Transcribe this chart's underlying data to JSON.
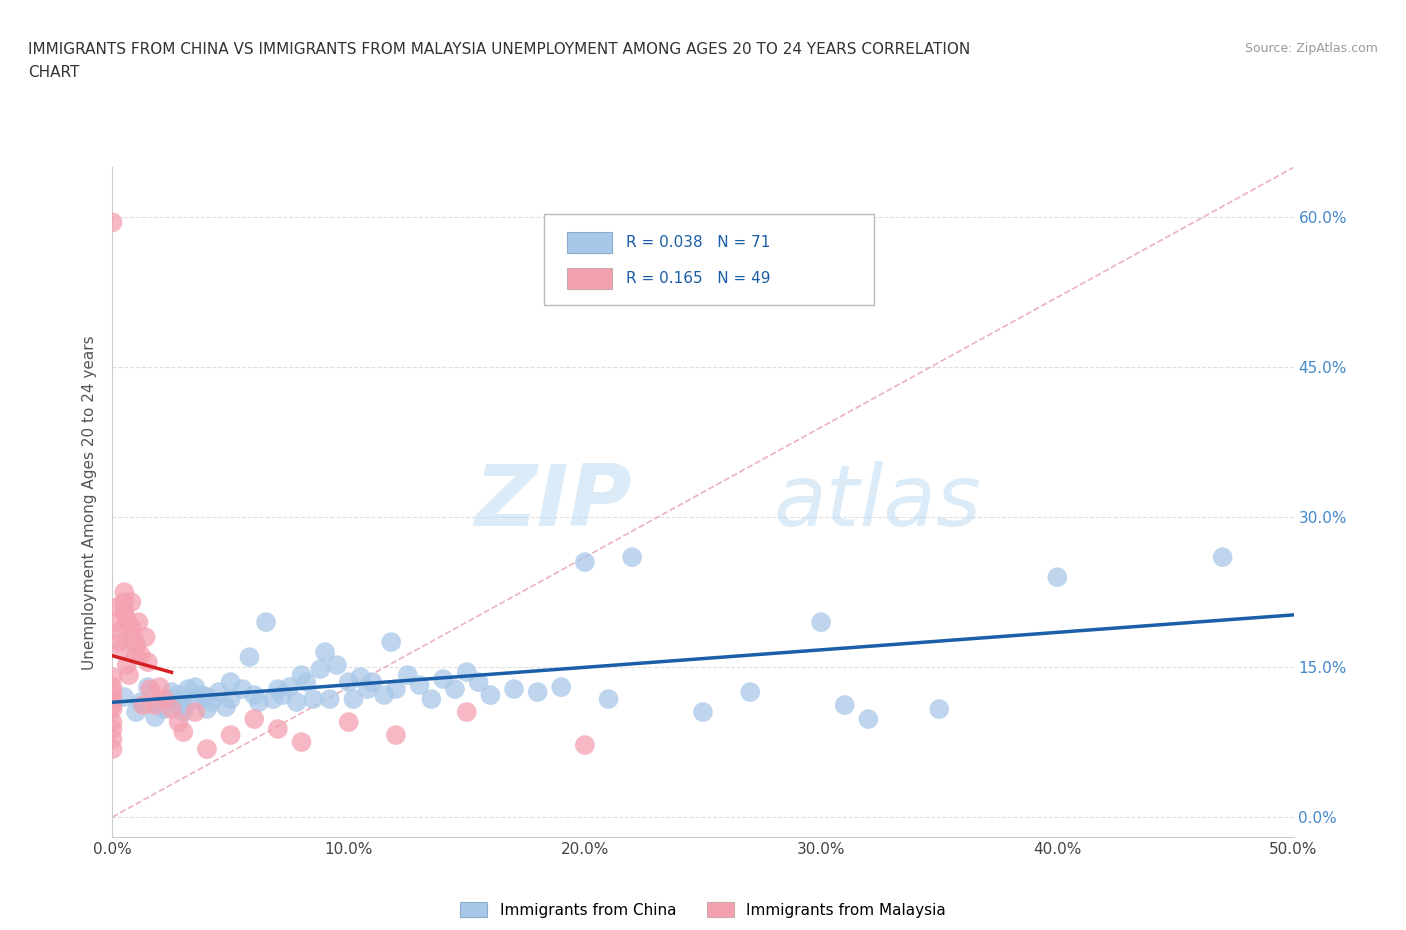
{
  "title_line1": "IMMIGRANTS FROM CHINA VS IMMIGRANTS FROM MALAYSIA UNEMPLOYMENT AMONG AGES 20 TO 24 YEARS CORRELATION",
  "title_line2": "CHART",
  "source_text": "Source: ZipAtlas.com",
  "ylabel_label": "Unemployment Among Ages 20 to 24 years",
  "xlim": [
    0.0,
    0.5
  ],
  "ylim": [
    -0.02,
    0.65
  ],
  "yticks": [
    0.0,
    0.15,
    0.3,
    0.45,
    0.6
  ],
  "ytick_labels": [
    "0.0%",
    "15.0%",
    "30.0%",
    "45.0%",
    "60.0%"
  ],
  "xticks": [
    0.0,
    0.1,
    0.2,
    0.3,
    0.4,
    0.5
  ],
  "xtick_labels": [
    "0.0%",
    "10.0%",
    "20.0%",
    "30.0%",
    "40.0%",
    "50.0%"
  ],
  "legend_r_china": "R = 0.038",
  "legend_n_china": "N = 71",
  "legend_r_malaysia": "R = 0.165",
  "legend_n_malaysia": "N = 49",
  "china_color": "#a8c8e8",
  "malaysia_color": "#f4a0b0",
  "china_line_color": "#1a5fa8",
  "malaysia_line_color": "#d42020",
  "diag_color": "#e8a0a8",
  "watermark_zip": "ZIP",
  "watermark_atlas": "atlas",
  "background_color": "#ffffff",
  "grid_color": "#e0e0e0",
  "yaxis_color": "#4488cc",
  "china_x": [
    0.005,
    0.01,
    0.012,
    0.015,
    0.018,
    0.02,
    0.022,
    0.025,
    0.025,
    0.028,
    0.03,
    0.03,
    0.03,
    0.032,
    0.035,
    0.035,
    0.038,
    0.04,
    0.04,
    0.042,
    0.045,
    0.048,
    0.05,
    0.05,
    0.055,
    0.058,
    0.06,
    0.062,
    0.065,
    0.068,
    0.07,
    0.072,
    0.075,
    0.078,
    0.08,
    0.082,
    0.085,
    0.088,
    0.09,
    0.092,
    0.095,
    0.1,
    0.102,
    0.105,
    0.108,
    0.11,
    0.115,
    0.118,
    0.12,
    0.125,
    0.13,
    0.135,
    0.14,
    0.145,
    0.15,
    0.155,
    0.16,
    0.17,
    0.18,
    0.19,
    0.2,
    0.21,
    0.22,
    0.25,
    0.27,
    0.3,
    0.31,
    0.32,
    0.35,
    0.4,
    0.47
  ],
  "china_y": [
    0.12,
    0.105,
    0.115,
    0.13,
    0.1,
    0.112,
    0.108,
    0.125,
    0.118,
    0.122,
    0.11,
    0.105,
    0.115,
    0.128,
    0.13,
    0.118,
    0.122,
    0.108,
    0.12,
    0.115,
    0.125,
    0.11,
    0.135,
    0.118,
    0.128,
    0.16,
    0.122,
    0.115,
    0.195,
    0.118,
    0.128,
    0.122,
    0.13,
    0.115,
    0.142,
    0.135,
    0.118,
    0.148,
    0.165,
    0.118,
    0.152,
    0.135,
    0.118,
    0.14,
    0.128,
    0.135,
    0.122,
    0.175,
    0.128,
    0.142,
    0.132,
    0.118,
    0.138,
    0.128,
    0.145,
    0.135,
    0.122,
    0.128,
    0.125,
    0.13,
    0.255,
    0.118,
    0.26,
    0.105,
    0.125,
    0.195,
    0.112,
    0.098,
    0.108,
    0.24,
    0.26
  ],
  "malaysia_x": [
    0.0,
    0.0,
    0.0,
    0.0,
    0.0,
    0.0,
    0.0,
    0.0,
    0.0,
    0.0,
    0.0,
    0.002,
    0.002,
    0.003,
    0.003,
    0.004,
    0.005,
    0.005,
    0.005,
    0.006,
    0.006,
    0.007,
    0.008,
    0.008,
    0.009,
    0.01,
    0.01,
    0.011,
    0.012,
    0.013,
    0.014,
    0.015,
    0.016,
    0.018,
    0.02,
    0.022,
    0.025,
    0.028,
    0.03,
    0.035,
    0.04,
    0.05,
    0.06,
    0.07,
    0.08,
    0.1,
    0.12,
    0.15,
    0.2
  ],
  "malaysia_y": [
    0.595,
    0.125,
    0.118,
    0.108,
    0.112,
    0.13,
    0.095,
    0.088,
    0.14,
    0.078,
    0.068,
    0.21,
    0.195,
    0.185,
    0.175,
    0.168,
    0.225,
    0.215,
    0.205,
    0.198,
    0.152,
    0.142,
    0.215,
    0.19,
    0.18,
    0.172,
    0.162,
    0.195,
    0.162,
    0.112,
    0.18,
    0.155,
    0.128,
    0.112,
    0.13,
    0.118,
    0.108,
    0.095,
    0.085,
    0.105,
    0.068,
    0.082,
    0.098,
    0.088,
    0.075,
    0.095,
    0.082,
    0.105,
    0.072
  ]
}
